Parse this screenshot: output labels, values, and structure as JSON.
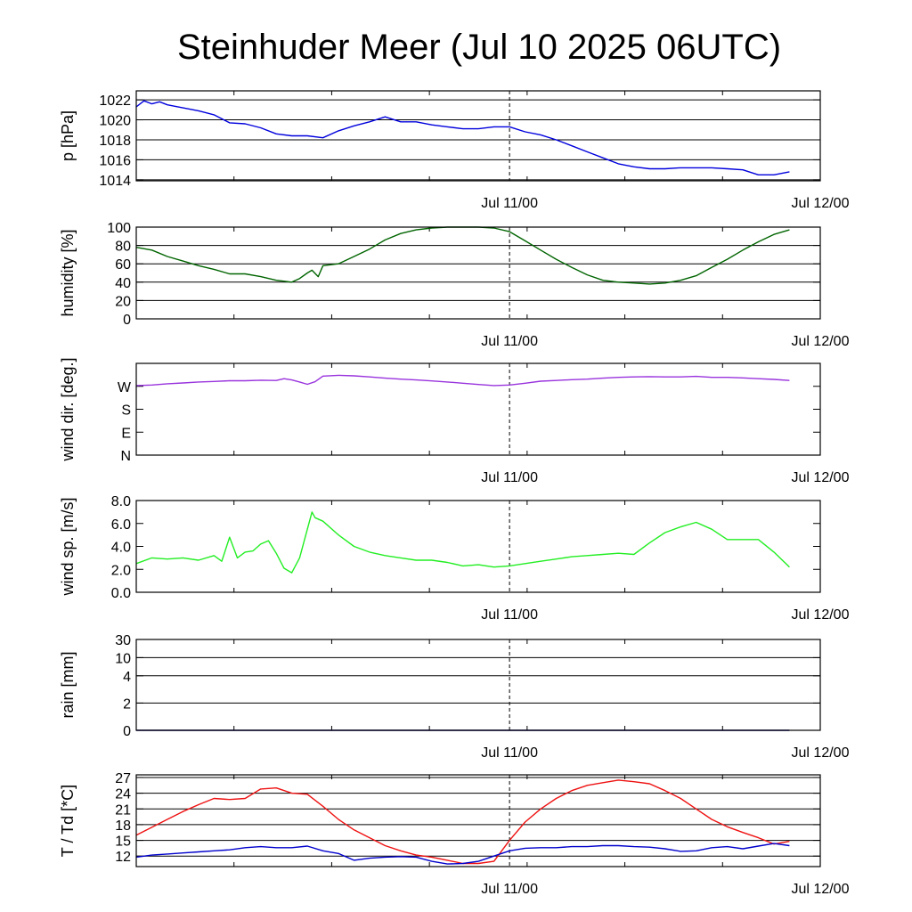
{
  "title": "Steinhuder Meer (Jul 10 2025 06UTC)",
  "colors": {
    "pressure": "#0000dd",
    "humidity": "#006400",
    "wind_dir": "#9933dd",
    "wind_speed": "#22ee22",
    "rain": "#000080",
    "temperature": "#ee1111",
    "dewpoint": "#0000cc"
  },
  "chart_data": [
    {
      "type": "line",
      "ylabel": "p [hPa]",
      "x_tick_labels": [
        "Jul 11/00",
        "Jul 12/00"
      ],
      "x_range_hours": [
        0,
        42
      ],
      "ylim": [
        1013.9,
        1022.9
      ],
      "yticks": [
        1014,
        1016,
        1018,
        1020,
        1022
      ],
      "ytick_labels": [
        "1014",
        "1016",
        "1018",
        "1020",
        "1022"
      ],
      "gridlines": [
        1014,
        1016,
        1018,
        1020,
        1022
      ],
      "series": [
        {
          "color_key": "pressure",
          "x": [
            0,
            0.5,
            1,
            1.5,
            2,
            3,
            4,
            5,
            6,
            7,
            8,
            9,
            10,
            11,
            12,
            13,
            14,
            15,
            16,
            17,
            18,
            19,
            20,
            21,
            22,
            23,
            24,
            25,
            26,
            27,
            28,
            29,
            30,
            31,
            32,
            33,
            34,
            35,
            36,
            37,
            38,
            39,
            40,
            41,
            42
          ],
          "y": [
            1021.3,
            1021.9,
            1021.6,
            1021.8,
            1021.5,
            1021.2,
            1020.9,
            1020.5,
            1019.7,
            1019.6,
            1019.2,
            1018.6,
            1018.4,
            1018.4,
            1018.2,
            1018.9,
            1019.4,
            1019.8,
            1020.3,
            1019.8,
            1019.8,
            1019.5,
            1019.3,
            1019.1,
            1019.1,
            1019.3,
            1019.3,
            1018.8,
            1018.5,
            1018.0,
            1017.4,
            1016.8,
            1016.2,
            1015.6,
            1015.3,
            1015.1,
            1015.1,
            1015.2,
            1015.2,
            1015.2,
            1015.1,
            1015.0,
            1014.5,
            1014.5,
            1014.8
          ]
        }
      ]
    },
    {
      "type": "line",
      "ylabel": "humidity [%]",
      "x_tick_labels": [
        "Jul 11/00",
        "Jul 12/00"
      ],
      "x_range_hours": [
        0,
        42
      ],
      "ylim": [
        0,
        100
      ],
      "yticks": [
        0,
        20,
        40,
        60,
        80,
        100
      ],
      "ytick_labels": [
        "0",
        "20",
        "40",
        "60",
        "80",
        "100"
      ],
      "gridlines": [
        20,
        40,
        60,
        80,
        100
      ],
      "series": [
        {
          "color_key": "humidity",
          "x": [
            0,
            1,
            2,
            3,
            4,
            5,
            6,
            7,
            8,
            9,
            10,
            10.5,
            11,
            11.3,
            11.7,
            12,
            13,
            14,
            15,
            16,
            17,
            18,
            19,
            20,
            21,
            22,
            23,
            24,
            25,
            26,
            27,
            28,
            29,
            30,
            31,
            32,
            33,
            34,
            35,
            36,
            37,
            38,
            39,
            40,
            41,
            42
          ],
          "y": [
            78,
            75,
            68,
            63,
            58,
            54,
            49,
            49,
            46,
            42,
            40,
            44,
            50,
            53,
            46,
            58,
            60,
            68,
            76,
            86,
            93,
            97,
            99,
            100,
            100,
            100,
            99,
            95,
            85,
            75,
            65,
            56,
            48,
            42,
            40,
            39,
            38,
            39,
            42,
            47,
            56,
            65,
            75,
            84,
            92,
            97
          ]
        }
      ]
    },
    {
      "type": "line",
      "ylabel": "wind dir. [deg.]",
      "x_tick_labels": [
        "Jul 11/00",
        "Jul 12/00"
      ],
      "x_range_hours": [
        0,
        42
      ],
      "ylim": [
        0,
        360
      ],
      "yticks": [
        0,
        90,
        180,
        270
      ],
      "ytick_labels": [
        "N",
        "E",
        "S",
        "W"
      ],
      "gridlines": [],
      "series": [
        {
          "color_key": "wind_dir",
          "x": [
            0,
            1,
            2,
            3,
            4,
            5,
            6,
            7,
            8,
            9,
            9.5,
            10,
            10.5,
            11,
            11.5,
            12,
            13,
            14,
            15,
            16,
            17,
            18,
            19,
            20,
            21,
            22,
            23,
            24,
            25,
            26,
            27,
            28,
            29,
            30,
            31,
            32,
            33,
            34,
            35,
            36,
            37,
            38,
            39,
            40,
            41,
            42
          ],
          "y": [
            273,
            275,
            280,
            283,
            287,
            289,
            292,
            292,
            294,
            293,
            300,
            295,
            287,
            278,
            288,
            310,
            313,
            311,
            307,
            302,
            298,
            295,
            291,
            287,
            282,
            277,
            273,
            275,
            282,
            290,
            293,
            296,
            298,
            302,
            305,
            307,
            308,
            307,
            307,
            309,
            305,
            305,
            303,
            300,
            297,
            293
          ]
        }
      ]
    },
    {
      "type": "line",
      "ylabel": "wind sp. [m/s]",
      "x_tick_labels": [
        "Jul 11/00",
        "Jul 12/00"
      ],
      "x_range_hours": [
        0,
        42
      ],
      "ylim": [
        0,
        8
      ],
      "yticks": [
        0,
        2,
        4,
        6,
        8
      ],
      "ytick_labels": [
        "0.0",
        "2.0",
        "4.0",
        "6.0",
        "8.0"
      ],
      "gridlines": [],
      "series": [
        {
          "color_key": "wind_speed",
          "x": [
            0,
            1,
            2,
            3,
            4,
            5,
            5.5,
            6,
            6.5,
            7,
            7.5,
            8,
            8.5,
            9,
            9.5,
            10,
            10.5,
            11,
            11.3,
            11.5,
            12,
            13,
            14,
            15,
            16,
            17,
            18,
            19,
            20,
            21,
            22,
            23,
            24,
            25,
            26,
            27,
            28,
            29,
            30,
            31,
            32,
            33,
            34,
            35,
            36,
            37,
            38,
            39,
            40,
            41,
            42
          ],
          "y": [
            2.5,
            3.0,
            2.9,
            3.0,
            2.8,
            3.2,
            2.7,
            4.8,
            3.0,
            3.5,
            3.6,
            4.2,
            4.5,
            3.4,
            2.1,
            1.7,
            3.0,
            5.5,
            7.0,
            6.5,
            6.2,
            5.0,
            4.0,
            3.5,
            3.2,
            3.0,
            2.8,
            2.8,
            2.6,
            2.3,
            2.4,
            2.2,
            2.3,
            2.5,
            2.7,
            2.9,
            3.1,
            3.2,
            3.3,
            3.4,
            3.3,
            4.3,
            5.2,
            5.7,
            6.1,
            5.5,
            4.6,
            4.6,
            4.6,
            3.5,
            2.2
          ]
        }
      ]
    },
    {
      "type": "line",
      "ylabel": "rain [mm]",
      "x_tick_labels": [
        "Jul 11/00",
        "Jul 12/00"
      ],
      "x_range_hours": [
        0,
        42
      ],
      "ylim": [
        0,
        30
      ],
      "scale": "nonlinear",
      "yticks": [
        0,
        2,
        4,
        10,
        30
      ],
      "ytick_labels": [
        "0",
        "2",
        "4",
        "10",
        "30"
      ],
      "gridlines": [
        2,
        4,
        10,
        30
      ],
      "series": [
        {
          "color_key": "rain",
          "x": [
            0,
            42
          ],
          "y": [
            0,
            0
          ]
        }
      ]
    },
    {
      "type": "line",
      "ylabel": "T / Td [*C]",
      "x_tick_labels": [
        "Jul 11/00",
        "Jul 12/00"
      ],
      "x_range_hours": [
        0,
        42
      ],
      "ylim": [
        10,
        27.5
      ],
      "yticks": [
        12,
        15,
        18,
        21,
        24,
        27
      ],
      "ytick_labels": [
        "12",
        "15",
        "18",
        "21",
        "24",
        "27"
      ],
      "gridlines": [
        12,
        15,
        18,
        21,
        24,
        27
      ],
      "series": [
        {
          "color_key": "temperature",
          "x": [
            0,
            1,
            2,
            3,
            4,
            5,
            6,
            7,
            8,
            9,
            10,
            11,
            12,
            13,
            14,
            15,
            16,
            17,
            18,
            19,
            20,
            21,
            22,
            23,
            24,
            25,
            26,
            27,
            28,
            29,
            30,
            31,
            32,
            33,
            34,
            35,
            36,
            37,
            38,
            39,
            40,
            41,
            42
          ],
          "y": [
            16.0,
            17.5,
            19.0,
            20.5,
            21.8,
            23.0,
            22.8,
            23.0,
            24.8,
            25.0,
            24.0,
            23.8,
            21.5,
            19.0,
            17.0,
            15.5,
            14.0,
            13.0,
            12.2,
            11.8,
            11.2,
            10.6,
            10.6,
            11.0,
            15.0,
            18.5,
            21.0,
            23.0,
            24.5,
            25.5,
            26.0,
            26.5,
            26.2,
            25.8,
            24.5,
            23.0,
            21.0,
            19.0,
            17.6,
            16.5,
            15.5,
            14.3,
            14.8
          ]
        },
        {
          "color_key": "dewpoint",
          "x": [
            0,
            1,
            2,
            3,
            4,
            5,
            6,
            7,
            8,
            9,
            10,
            11,
            12,
            13,
            14,
            15,
            16,
            17,
            18,
            19,
            20,
            21,
            22,
            23,
            24,
            25,
            26,
            27,
            28,
            29,
            30,
            31,
            32,
            33,
            34,
            35,
            36,
            37,
            38,
            39,
            40,
            41,
            42
          ],
          "y": [
            11.8,
            12.2,
            12.4,
            12.6,
            12.8,
            13.0,
            13.2,
            13.6,
            13.8,
            13.6,
            13.6,
            13.9,
            13.0,
            12.5,
            11.2,
            11.6,
            11.8,
            11.9,
            11.8,
            11.0,
            10.5,
            10.6,
            11.0,
            12.0,
            13.0,
            13.5,
            13.6,
            13.6,
            13.8,
            13.8,
            14.0,
            14.0,
            13.8,
            13.7,
            13.4,
            12.9,
            13.0,
            13.6,
            13.8,
            13.4,
            13.9,
            14.4,
            14.0
          ]
        }
      ]
    }
  ]
}
